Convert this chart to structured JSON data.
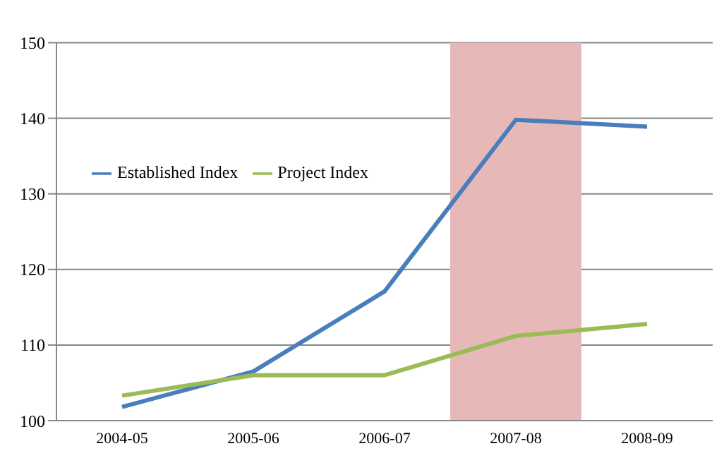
{
  "chart_data": {
    "type": "line",
    "categories": [
      "2004-05",
      "2005-06",
      "2006-07",
      "2007-08",
      "2008-09"
    ],
    "series": [
      {
        "name": "Established Index",
        "color": "#4a7ebb",
        "values": [
          101.8,
          106.5,
          117.1,
          139.8,
          138.9
        ]
      },
      {
        "name": "Project Index",
        "color": "#9bbb59",
        "values": [
          103.3,
          106,
          106,
          111.2,
          112.8
        ]
      }
    ],
    "ylim": [
      100,
      150
    ],
    "yticks": [
      100,
      110,
      120,
      130,
      140,
      150
    ],
    "grid": "y",
    "legend": "top left",
    "marker": "none",
    "line_style": "solid",
    "bands": [
      {
        "axis": "x",
        "from": "2007-08",
        "to": "2007-08",
        "color": "#e6b9b8"
      }
    ]
  }
}
